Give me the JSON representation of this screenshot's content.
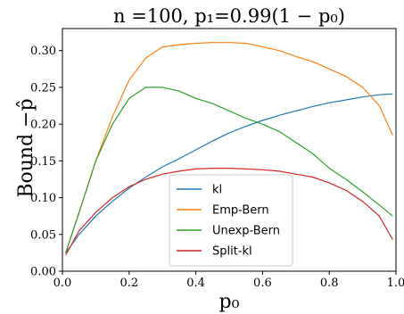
{
  "chart_data": {
    "type": "line",
    "title": "n =100, p₁=0.99(1 − p₀)",
    "xlabel": "p₀",
    "ylabel": "Bound −p̂",
    "xlim": [
      0.0,
      1.0
    ],
    "ylim": [
      0.0,
      0.33
    ],
    "xticks": [
      "0.0",
      "0.2",
      "0.4",
      "0.6",
      "0.8",
      "1.0"
    ],
    "yticks": [
      "0.00",
      "0.05",
      "0.10",
      "0.15",
      "0.20",
      "0.25",
      "0.30"
    ],
    "grid": false,
    "legend_position": "lower-center",
    "x": [
      0.01,
      0.05,
      0.1,
      0.15,
      0.2,
      0.25,
      0.3,
      0.35,
      0.4,
      0.45,
      0.5,
      0.55,
      0.6,
      0.65,
      0.7,
      0.75,
      0.8,
      0.85,
      0.9,
      0.95,
      0.99
    ],
    "series": [
      {
        "name": "kl",
        "color": "#1f77b4",
        "values": [
          0.025,
          0.05,
          0.075,
          0.095,
          0.113,
          0.128,
          0.142,
          0.153,
          0.165,
          0.177,
          0.188,
          0.197,
          0.205,
          0.212,
          0.218,
          0.224,
          0.229,
          0.233,
          0.237,
          0.24,
          0.241
        ]
      },
      {
        "name": "Emp-Bern",
        "color": "#ff7f0e",
        "values": [
          0.025,
          0.08,
          0.15,
          0.21,
          0.26,
          0.29,
          0.305,
          0.308,
          0.31,
          0.311,
          0.311,
          0.31,
          0.305,
          0.3,
          0.292,
          0.285,
          0.275,
          0.265,
          0.25,
          0.225,
          0.185
        ]
      },
      {
        "name": "Unexp-Bern",
        "color": "#2ca02c",
        "values": [
          0.025,
          0.08,
          0.15,
          0.2,
          0.235,
          0.25,
          0.25,
          0.245,
          0.235,
          0.228,
          0.218,
          0.208,
          0.2,
          0.19,
          0.175,
          0.16,
          0.14,
          0.125,
          0.108,
          0.09,
          0.075
        ]
      },
      {
        "name": "Split-kl",
        "color": "#d62728",
        "values": [
          0.022,
          0.055,
          0.08,
          0.1,
          0.115,
          0.125,
          0.132,
          0.136,
          0.139,
          0.14,
          0.14,
          0.139,
          0.138,
          0.136,
          0.132,
          0.128,
          0.12,
          0.11,
          0.095,
          0.075,
          0.043
        ]
      }
    ]
  }
}
